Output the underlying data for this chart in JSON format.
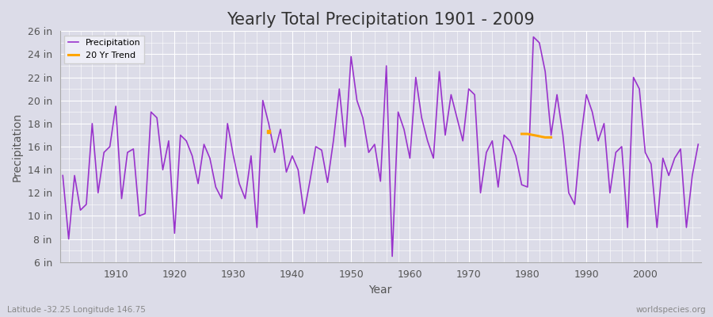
{
  "title": "Yearly Total Precipitation 1901 - 2009",
  "xlabel": "Year",
  "ylabel": "Precipitation",
  "years": [
    1901,
    1902,
    1903,
    1904,
    1905,
    1906,
    1907,
    1908,
    1909,
    1910,
    1911,
    1912,
    1913,
    1914,
    1915,
    1916,
    1917,
    1918,
    1919,
    1920,
    1921,
    1922,
    1923,
    1924,
    1925,
    1926,
    1927,
    1928,
    1929,
    1930,
    1931,
    1932,
    1933,
    1934,
    1935,
    1936,
    1937,
    1938,
    1939,
    1940,
    1941,
    1942,
    1943,
    1944,
    1945,
    1946,
    1947,
    1948,
    1949,
    1950,
    1951,
    1952,
    1953,
    1954,
    1955,
    1956,
    1957,
    1958,
    1959,
    1960,
    1961,
    1962,
    1963,
    1964,
    1965,
    1966,
    1967,
    1968,
    1969,
    1970,
    1971,
    1972,
    1973,
    1974,
    1975,
    1976,
    1977,
    1978,
    1979,
    1980,
    1981,
    1982,
    1983,
    1984,
    1985,
    1986,
    1987,
    1988,
    1989,
    1990,
    1991,
    1992,
    1993,
    1994,
    1995,
    1996,
    1997,
    1998,
    1999,
    2000,
    2001,
    2002,
    2003,
    2004,
    2005,
    2006,
    2007,
    2008,
    2009
  ],
  "precip_in": [
    13.5,
    8.0,
    13.5,
    10.5,
    11.0,
    18.0,
    12.0,
    15.5,
    16.0,
    19.5,
    11.5,
    15.5,
    15.8,
    10.0,
    10.2,
    19.0,
    18.5,
    14.0,
    16.5,
    8.5,
    17.0,
    16.5,
    15.2,
    12.8,
    16.2,
    15.0,
    12.5,
    11.5,
    18.0,
    15.2,
    12.8,
    11.5,
    15.2,
    9.0,
    20.0,
    18.0,
    15.5,
    17.5,
    13.8,
    15.2,
    14.0,
    10.2,
    13.0,
    16.0,
    15.7,
    12.9,
    16.5,
    21.0,
    16.0,
    23.8,
    20.0,
    18.5,
    15.5,
    16.2,
    13.0,
    23.0,
    6.5,
    19.0,
    17.5,
    15.0,
    22.0,
    18.5,
    16.5,
    15.0,
    22.5,
    17.0,
    20.5,
    18.5,
    16.5,
    21.0,
    20.5,
    12.0,
    15.5,
    16.5,
    12.5,
    17.0,
    16.5,
    15.2,
    12.7,
    12.5,
    25.5,
    25.0,
    22.5,
    17.0,
    20.5,
    17.0,
    12.0,
    11.0,
    16.5,
    20.5,
    19.0,
    16.5,
    18.0,
    12.0,
    15.5,
    16.0,
    9.0,
    22.0,
    21.0,
    15.5,
    14.5,
    9.0,
    15.0,
    13.5,
    15.0,
    15.8,
    9.0,
    13.5,
    16.2
  ],
  "trend_years": [
    1979,
    1980,
    1981,
    1982,
    1983,
    1984
  ],
  "trend_values": [
    17.1,
    17.1,
    17.0,
    16.9,
    16.8,
    16.8
  ],
  "trend_dot_year": 1936,
  "trend_dot_value": 17.3,
  "precip_color": "#9933cc",
  "trend_color": "#ffa500",
  "bg_color": "#dcdce8",
  "plot_bg_color": "#dcdce8",
  "grid_color": "#ffffff",
  "ylim_min": 6,
  "ylim_max": 26,
  "xlim_min": 1900.5,
  "xlim_max": 2009.5,
  "yticks": [
    6,
    8,
    10,
    12,
    14,
    16,
    18,
    20,
    22,
    24,
    26
  ],
  "ytick_labels": [
    "6 in",
    "8 in",
    "10 in",
    "12 in",
    "14 in",
    "16 in",
    "18 in",
    "20 in",
    "22 in",
    "24 in",
    "26 in"
  ],
  "xticks": [
    1910,
    1920,
    1930,
    1940,
    1950,
    1960,
    1970,
    1980,
    1990,
    2000
  ],
  "subtitle_left": "Latitude -32.25 Longitude 146.75",
  "subtitle_right": "worldspecies.org",
  "title_fontsize": 15,
  "axis_label_fontsize": 10,
  "tick_fontsize": 9,
  "line_width": 1.2
}
